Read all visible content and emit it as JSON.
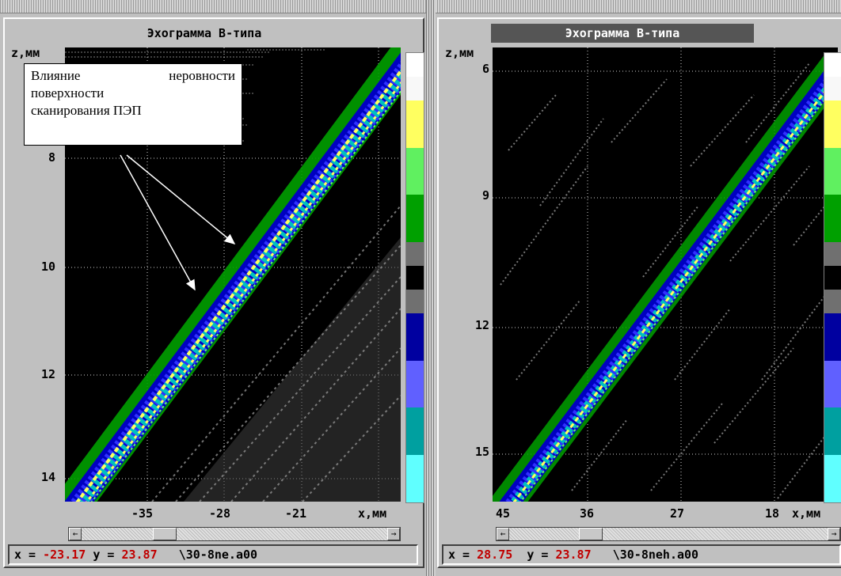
{
  "left": {
    "title": "Эхограмма В-типа",
    "z_label": "z,мм",
    "x_label": "x,мм",
    "y_ticks": [
      "8",
      "10",
      "12",
      "14"
    ],
    "x_ticks": [
      "-35",
      "-28",
      "-21"
    ],
    "status": {
      "x_prefix": "x = ",
      "x_val": "-23.17",
      "y_prefix": " y = ",
      "y_val": "23.87",
      "file": "   \\30-8ne.a00"
    },
    "annotation": {
      "line1": "Влияние неровности",
      "line2": "поверхности",
      "line3": "сканирования ПЭП"
    }
  },
  "right": {
    "title": "Эхограмма В-типа",
    "z_label": "z,мм",
    "x_label": "x,мм",
    "y_ticks": [
      "6",
      "9",
      "12",
      "15"
    ],
    "x_ticks": [
      "45",
      "36",
      "27",
      "18"
    ],
    "status": {
      "x_prefix": "x = ",
      "x_val": "28.75",
      "y_prefix": "  y = ",
      "y_val": "23.87",
      "file": "   \\30-8neh.a00"
    }
  },
  "palette": [
    "#ffffff",
    "#f8f8f8",
    "#ffff60",
    "#ffff60",
    "#60f060",
    "#60f060",
    "#00a000",
    "#00a000",
    "#707070",
    "#000000",
    "#707070",
    "#0000a0",
    "#0000a0",
    "#6060ff",
    "#6060ff",
    "#00a0a0",
    "#00a0a0",
    "#60ffff",
    "#60ffff"
  ]
}
